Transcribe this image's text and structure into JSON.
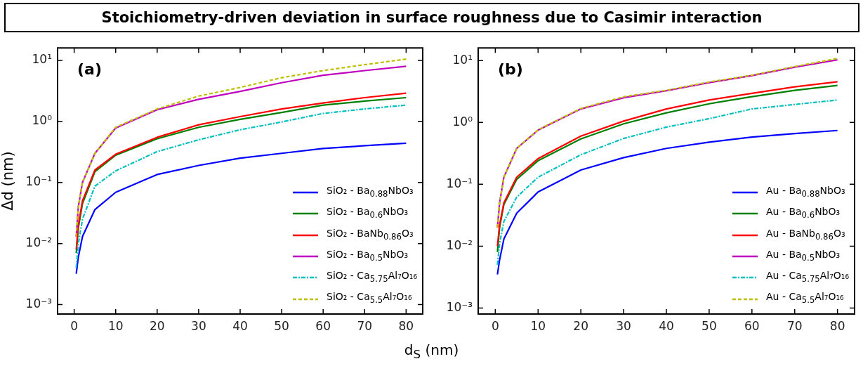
{
  "chart_data": [
    {
      "type": "line",
      "title": "Stoichiometry-driven deviation in surface roughness due to Casimir interaction",
      "xlabel": "d$_{S}$ (nm)",
      "ylabel": "Δd (nm)",
      "annotations": [
        "(a)"
      ],
      "log": "y",
      "grid": false,
      "legend": "bottom right",
      "marker": "none",
      "x": [
        0.5,
        1,
        2,
        5,
        10,
        20,
        30,
        40,
        50,
        60,
        70,
        80
      ],
      "xlim": [
        -4,
        84
      ],
      "xticks": [
        0,
        10,
        20,
        30,
        40,
        50,
        60,
        70,
        80
      ],
      "ylim": [
        0.0007,
        16
      ],
      "yticks": [
        {
          "value": 0.001,
          "label": "10⁻³"
        },
        {
          "value": 0.01,
          "label": "10⁻²"
        },
        {
          "value": 0.1,
          "label": "10⁻¹"
        },
        {
          "value": 1,
          "label": "10⁰"
        },
        {
          "value": 10,
          "label": "10¹"
        }
      ],
      "series": [
        {
          "name": "SiO₂ - Ba$_{0.88}$NbO₃",
          "color": "#0000ff",
          "line_style": "solid",
          "values": [
            0.0032,
            0.006,
            0.013,
            0.036,
            0.069,
            0.135,
            0.19,
            0.25,
            0.3,
            0.36,
            0.4,
            0.44
          ]
        },
        {
          "name": "SiO₂ - Ba$_{0.6}$NbO₃",
          "color": "#008000",
          "line_style": "solid",
          "values": [
            0.007,
            0.018,
            0.045,
            0.15,
            0.28,
            0.52,
            0.8,
            1.08,
            1.4,
            1.85,
            2.15,
            2.45
          ]
        },
        {
          "name": "SiO₂ - BaNb$_{0.86}$O₃",
          "color": "#ff0000",
          "line_style": "solid",
          "values": [
            0.008,
            0.02,
            0.05,
            0.16,
            0.29,
            0.55,
            0.88,
            1.2,
            1.6,
            2.0,
            2.45,
            2.9
          ]
        },
        {
          "name": "SiO₂ - Ba$_{0.5}$NbO₃",
          "color": "#bf00bf",
          "line_style": "solid",
          "values": [
            0.013,
            0.04,
            0.1,
            0.3,
            0.78,
            1.55,
            2.3,
            3.1,
            4.3,
            5.7,
            6.8,
            8.0
          ]
        },
        {
          "name": "SiO₂ - Ca$_{5.75}$Al₇O₁₆",
          "color": "#00bfbf",
          "line_style": "dashdot",
          "values": [
            0.004,
            0.01,
            0.025,
            0.087,
            0.155,
            0.32,
            0.5,
            0.73,
            0.98,
            1.35,
            1.6,
            1.85
          ]
        },
        {
          "name": "SiO₂ - Ca$_{5.5}$Al₇O₁₆",
          "color": "#bfbf00",
          "line_style": "dashed",
          "values": [
            0.013,
            0.04,
            0.1,
            0.3,
            0.8,
            1.6,
            2.6,
            3.6,
            5.2,
            6.8,
            8.5,
            10.5
          ]
        }
      ]
    },
    {
      "type": "line",
      "annotations": [
        "(b)"
      ],
      "log": "y",
      "grid": false,
      "legend": "bottom right",
      "marker": "none",
      "x": [
        0.5,
        1,
        2,
        5,
        10,
        20,
        30,
        40,
        50,
        60,
        70,
        80
      ],
      "xlim": [
        -4,
        84
      ],
      "xticks": [
        0,
        10,
        20,
        30,
        40,
        50,
        60,
        70,
        80
      ],
      "ylim": [
        0.0008,
        16
      ],
      "yticks": [
        {
          "value": 0.001,
          "label": "10⁻³"
        },
        {
          "value": 0.01,
          "label": "10⁻²"
        },
        {
          "value": 0.1,
          "label": "10⁻¹"
        },
        {
          "value": 1,
          "label": "10⁰"
        },
        {
          "value": 10,
          "label": "10¹"
        }
      ],
      "series": [
        {
          "name": "Au - Ba$_{0.88}$NbO₃",
          "color": "#0000ff",
          "line_style": "solid",
          "values": [
            0.0035,
            0.006,
            0.013,
            0.034,
            0.075,
            0.17,
            0.27,
            0.38,
            0.48,
            0.58,
            0.66,
            0.74
          ]
        },
        {
          "name": "Au - Ba$_{0.6}$NbO₃",
          "color": "#008000",
          "line_style": "solid",
          "values": [
            0.008,
            0.02,
            0.047,
            0.12,
            0.24,
            0.54,
            0.95,
            1.43,
            2.0,
            2.6,
            3.3,
            3.95
          ]
        },
        {
          "name": "Au - BaNb$_{0.86}$O₃",
          "color": "#ff0000",
          "line_style": "solid",
          "values": [
            0.01,
            0.022,
            0.05,
            0.13,
            0.26,
            0.6,
            1.05,
            1.65,
            2.3,
            2.95,
            3.75,
            4.55
          ]
        },
        {
          "name": "Au - Ba$_{0.5}$NbO₃",
          "color": "#bf00bf",
          "line_style": "solid",
          "values": [
            0.02,
            0.05,
            0.13,
            0.38,
            0.75,
            1.65,
            2.5,
            3.25,
            4.4,
            5.7,
            7.8,
            10.3
          ]
        },
        {
          "name": "Au - Ca$_{5.75}$Al₇O₁₆",
          "color": "#00bfbf",
          "line_style": "dashdot",
          "values": [
            0.005,
            0.011,
            0.025,
            0.062,
            0.13,
            0.3,
            0.55,
            0.84,
            1.15,
            1.65,
            1.95,
            2.3
          ]
        },
        {
          "name": "Au - Ca$_{5.5}$Al₇O₁₆",
          "color": "#bfbf00",
          "line_style": "dashed",
          "values": [
            0.02,
            0.05,
            0.13,
            0.38,
            0.76,
            1.68,
            2.6,
            3.3,
            4.5,
            5.8,
            8.0,
            10.8
          ]
        }
      ]
    }
  ]
}
